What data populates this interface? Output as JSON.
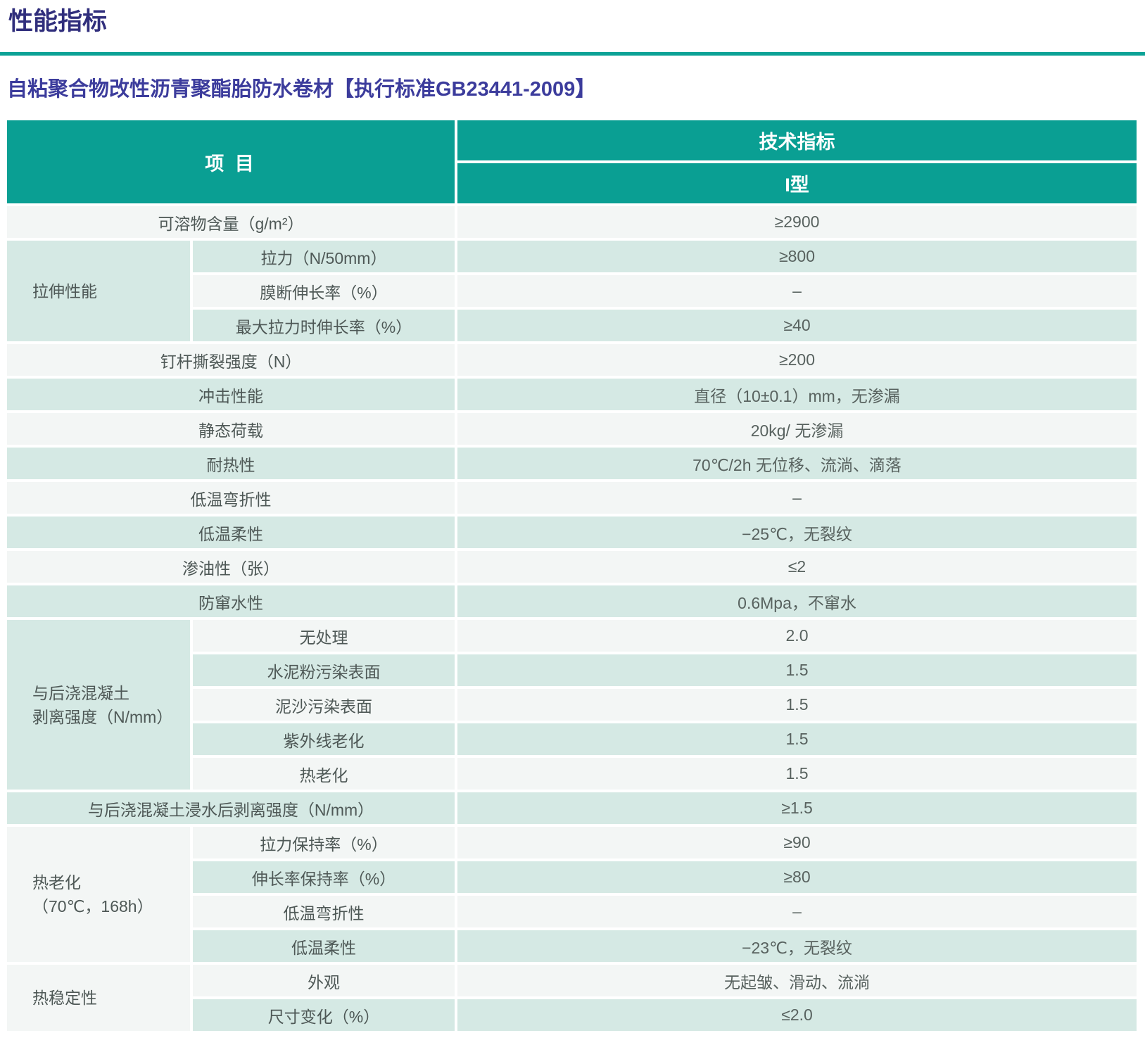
{
  "page": {
    "title": "性能指标",
    "subtitle": "自粘聚合物改性沥青聚酯胎防水卷材【执行标准GB23441-2009】"
  },
  "colors": {
    "header_teal": "#0a9f93",
    "row_teal": "#d5e9e4",
    "row_light": "#f3f6f5",
    "rule_teal": "#0ca296",
    "title_indigo": "#302e7c",
    "subtitle_violet": "#3c3c9c"
  },
  "table": {
    "header": {
      "item_col": "项 目",
      "tech_col": "技术指标",
      "type_col": "I型"
    },
    "rows": [
      {
        "label": "可溶物含量（g/m²）",
        "value": "≥2900",
        "span": "full",
        "shade": "light"
      },
      {
        "group": "拉伸性能",
        "group_rows": 3,
        "group_shade": "teal",
        "label": "拉力（N/50mm）",
        "value": "≥800",
        "shade": "teal"
      },
      {
        "label": "膜断伸长率（%）",
        "value": "–",
        "shade": "light"
      },
      {
        "label": "最大拉力时伸长率（%）",
        "value": "≥40",
        "shade": "teal"
      },
      {
        "label": "钉杆撕裂强度（N）",
        "value": "≥200",
        "span": "full",
        "shade": "light"
      },
      {
        "label": "冲击性能",
        "value": "直径（10±0.1）mm，无渗漏",
        "span": "full",
        "shade": "teal"
      },
      {
        "label": "静态荷载",
        "value": "20kg/ 无渗漏",
        "span": "full",
        "shade": "light"
      },
      {
        "label": "耐热性",
        "value": "70℃/2h 无位移、流淌、滴落",
        "span": "full",
        "shade": "teal"
      },
      {
        "label": "低温弯折性",
        "value": "–",
        "span": "full",
        "shade": "light"
      },
      {
        "label": "低温柔性",
        "value": "−25℃，无裂纹",
        "span": "full",
        "shade": "teal"
      },
      {
        "label": "渗油性（张）",
        "value": "≤2",
        "span": "full",
        "shade": "light"
      },
      {
        "label": "防窜水性",
        "value": "0.6Mpa，不窜水",
        "span": "full",
        "shade": "teal"
      },
      {
        "group": "与后浇混凝土\n剥离强度（N/mm）",
        "group_rows": 5,
        "group_shade": "teal",
        "label": "无处理",
        "value": "2.0",
        "shade": "light"
      },
      {
        "label": "水泥粉污染表面",
        "value": "1.5",
        "shade": "teal"
      },
      {
        "label": "泥沙污染表面",
        "value": "1.5",
        "shade": "light"
      },
      {
        "label": "紫外线老化",
        "value": "1.5",
        "shade": "teal"
      },
      {
        "label": "热老化",
        "value": "1.5",
        "shade": "light"
      },
      {
        "label": "与后浇混凝土浸水后剥离强度（N/mm）",
        "value": "≥1.5",
        "span": "full",
        "shade": "teal"
      },
      {
        "group": "热老化\n（70℃，168h）",
        "group_rows": 4,
        "group_shade": "light",
        "label": "拉力保持率（%）",
        "value": "≥90",
        "shade": "light"
      },
      {
        "label": "伸长率保持率（%）",
        "value": "≥80",
        "shade": "teal"
      },
      {
        "label": "低温弯折性",
        "value": "–",
        "shade": "light"
      },
      {
        "label": "低温柔性",
        "value": "−23℃，无裂纹",
        "shade": "teal"
      },
      {
        "group": "热稳定性",
        "group_rows": 2,
        "group_shade": "light",
        "label": "外观",
        "value": "无起皱、滑动、流淌",
        "shade": "light"
      },
      {
        "label": "尺寸变化（%）",
        "value": "≤2.0",
        "shade": "teal"
      }
    ]
  }
}
